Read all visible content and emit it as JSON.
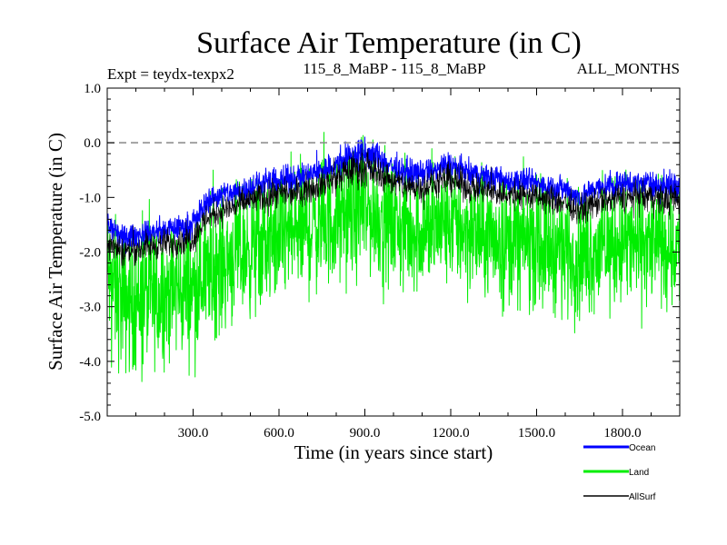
{
  "chart_data": {
    "type": "line",
    "title": "Surface Air Temperature (in C)",
    "subtitle_left": "Expt = teydx-texpx2",
    "subtitle_center": "115_8_MaBP - 115_8_MaBP",
    "subtitle_right": "ALL_MONTHS",
    "xlabel": "Time (in years since start)",
    "ylabel": "Surface Air Temperature (in C)",
    "xlim": [
      0,
      2000
    ],
    "ylim": [
      -5.0,
      1.0
    ],
    "x_ticks": [
      300,
      600,
      900,
      1200,
      1500,
      1800
    ],
    "x_tick_labels": [
      "300.0",
      "600.0",
      "900.0",
      "1200.0",
      "1500.0",
      "1800.0"
    ],
    "y_ticks": [
      -5.0,
      -4.0,
      -3.0,
      -2.0,
      -1.0,
      0.0,
      1.0
    ],
    "y_tick_labels": [
      "-5.0",
      "-4.0",
      "-3.0",
      "-2.0",
      "-1.0",
      "0.0",
      "1.0"
    ],
    "reference_line": {
      "y": 0.0,
      "style": "dashed",
      "color": "#888888"
    },
    "series": [
      {
        "name": "Ocean",
        "color": "#0000ff",
        "x": [
          0,
          50,
          100,
          150,
          200,
          250,
          300,
          350,
          400,
          450,
          500,
          550,
          600,
          650,
          700,
          750,
          800,
          850,
          900,
          950,
          1000,
          1050,
          1100,
          1150,
          1200,
          1250,
          1300,
          1350,
          1400,
          1450,
          1500,
          1550,
          1600,
          1650,
          1700,
          1750,
          1800,
          1850,
          1900,
          1950,
          2000
        ],
        "center": [
          -1.5,
          -1.75,
          -1.7,
          -1.65,
          -1.6,
          -1.55,
          -1.5,
          -1.05,
          -0.95,
          -0.9,
          -0.8,
          -0.75,
          -0.7,
          -0.65,
          -0.6,
          -0.5,
          -0.4,
          -0.25,
          -0.2,
          -0.3,
          -0.45,
          -0.55,
          -0.55,
          -0.5,
          -0.4,
          -0.55,
          -0.6,
          -0.65,
          -0.7,
          -0.7,
          -0.75,
          -0.8,
          -0.85,
          -1.0,
          -0.85,
          -0.8,
          -0.75,
          -0.75,
          -0.75,
          -0.8,
          -0.8
        ],
        "amplitude": [
          0.3,
          0.2,
          0.2,
          0.2,
          0.2,
          0.2,
          0.22,
          0.22,
          0.22,
          0.22,
          0.22,
          0.22,
          0.22,
          0.22,
          0.22,
          0.22,
          0.25,
          0.3,
          0.3,
          0.25,
          0.22,
          0.22,
          0.22,
          0.22,
          0.25,
          0.22,
          0.22,
          0.22,
          0.22,
          0.22,
          0.22,
          0.22,
          0.22,
          0.2,
          0.22,
          0.22,
          0.22,
          0.22,
          0.22,
          0.25,
          0.25
        ]
      },
      {
        "name": "Land",
        "color": "#00ee00",
        "x": [
          0,
          50,
          100,
          150,
          200,
          250,
          300,
          350,
          400,
          450,
          500,
          550,
          600,
          650,
          700,
          750,
          800,
          850,
          900,
          950,
          1000,
          1050,
          1100,
          1150,
          1200,
          1250,
          1300,
          1350,
          1400,
          1450,
          1500,
          1550,
          1600,
          1650,
          1700,
          1750,
          1800,
          1850,
          1900,
          1950,
          2000
        ],
        "center": [
          -2.4,
          -2.9,
          -2.85,
          -2.8,
          -2.75,
          -2.7,
          -2.65,
          -2.4,
          -2.2,
          -2.05,
          -1.95,
          -1.85,
          -1.75,
          -1.65,
          -1.6,
          -1.5,
          -1.45,
          -1.3,
          -1.25,
          -1.35,
          -1.5,
          -1.6,
          -1.6,
          -1.55,
          -1.45,
          -1.6,
          -1.7,
          -1.75,
          -1.8,
          -1.8,
          -1.85,
          -1.9,
          -1.95,
          -2.1,
          -1.95,
          -1.9,
          -1.85,
          -1.85,
          -1.85,
          -1.85,
          -1.9
        ],
        "amplitude": [
          1.1,
          1.2,
          1.2,
          1.2,
          1.2,
          1.15,
          1.15,
          1.15,
          1.1,
          1.1,
          1.1,
          1.1,
          1.1,
          1.1,
          1.1,
          1.05,
          1.05,
          1.05,
          1.05,
          1.05,
          1.05,
          1.05,
          1.05,
          1.05,
          1.05,
          1.05,
          1.05,
          1.05,
          1.05,
          1.05,
          1.05,
          1.05,
          1.05,
          1.05,
          1.05,
          1.05,
          1.05,
          1.05,
          1.05,
          1.05,
          1.05
        ]
      },
      {
        "name": "AllSurf",
        "color": "#000000",
        "x": [
          0,
          50,
          100,
          150,
          200,
          250,
          300,
          350,
          400,
          450,
          500,
          550,
          600,
          650,
          700,
          750,
          800,
          850,
          900,
          950,
          1000,
          1050,
          1100,
          1150,
          1200,
          1250,
          1300,
          1350,
          1400,
          1450,
          1500,
          1550,
          1600,
          1650,
          1700,
          1750,
          1800,
          1850,
          1900,
          1950,
          2000
        ],
        "center": [
          -1.75,
          -2.0,
          -1.95,
          -1.9,
          -1.85,
          -1.8,
          -1.75,
          -1.35,
          -1.25,
          -1.15,
          -1.05,
          -1.0,
          -0.95,
          -0.9,
          -0.85,
          -0.75,
          -0.65,
          -0.5,
          -0.45,
          -0.55,
          -0.7,
          -0.8,
          -0.8,
          -0.75,
          -0.65,
          -0.8,
          -0.85,
          -0.9,
          -0.95,
          -0.95,
          -1.0,
          -1.05,
          -1.1,
          -1.25,
          -1.1,
          -1.05,
          -1.0,
          -1.0,
          -1.0,
          -1.05,
          -1.05
        ],
        "amplitude": [
          0.3,
          0.25,
          0.25,
          0.25,
          0.25,
          0.25,
          0.25,
          0.25,
          0.25,
          0.25,
          0.25,
          0.25,
          0.25,
          0.25,
          0.25,
          0.25,
          0.28,
          0.3,
          0.3,
          0.28,
          0.25,
          0.25,
          0.25,
          0.25,
          0.28,
          0.25,
          0.25,
          0.25,
          0.25,
          0.25,
          0.25,
          0.25,
          0.25,
          0.22,
          0.25,
          0.25,
          0.25,
          0.25,
          0.25,
          0.28,
          0.28
        ]
      }
    ],
    "legend": {
      "placement": "bottom-right",
      "entries": [
        "Ocean",
        "Land",
        "AllSurf"
      ]
    }
  }
}
